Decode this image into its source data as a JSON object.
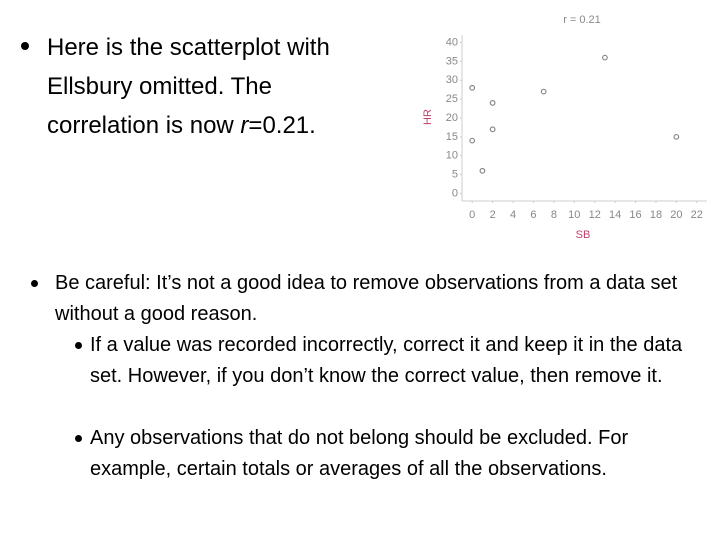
{
  "slide": {
    "intro": {
      "before": "Here is the scatterplot with Ellsbury omitted. The correlation is now ",
      "italic": "r",
      "after": "=0.21."
    },
    "bullets": [
      {
        "text": "Be careful: It’s not a good idea to remove observations from a data set without a good reason.",
        "sub": [
          "If a value was recorded incorrectly, correct it and keep it in the data set.  However, if you don’t know the correct value, then remove it.",
          "Any observations that do not belong should be excluded. For example, certain totals or averages of all the observations."
        ]
      }
    ]
  },
  "chart_data": {
    "type": "scatter",
    "title": "r = 0.21",
    "x_label": "SB",
    "y_label": "HR",
    "x": [
      0,
      0,
      1,
      2,
      2,
      7,
      13,
      20
    ],
    "y": [
      28,
      14,
      6,
      24,
      17,
      27,
      36,
      15
    ],
    "color": "#888888",
    "label_color": "#c0406a",
    "xlim": [
      -1,
      23
    ],
    "ylim": [
      -2,
      42
    ],
    "xticks": [
      0,
      2,
      4,
      6,
      8,
      10,
      12,
      14,
      16,
      18,
      20,
      22
    ],
    "yticks": [
      0,
      5,
      10,
      15,
      20,
      25,
      30,
      35,
      40
    ],
    "grid": false
  }
}
